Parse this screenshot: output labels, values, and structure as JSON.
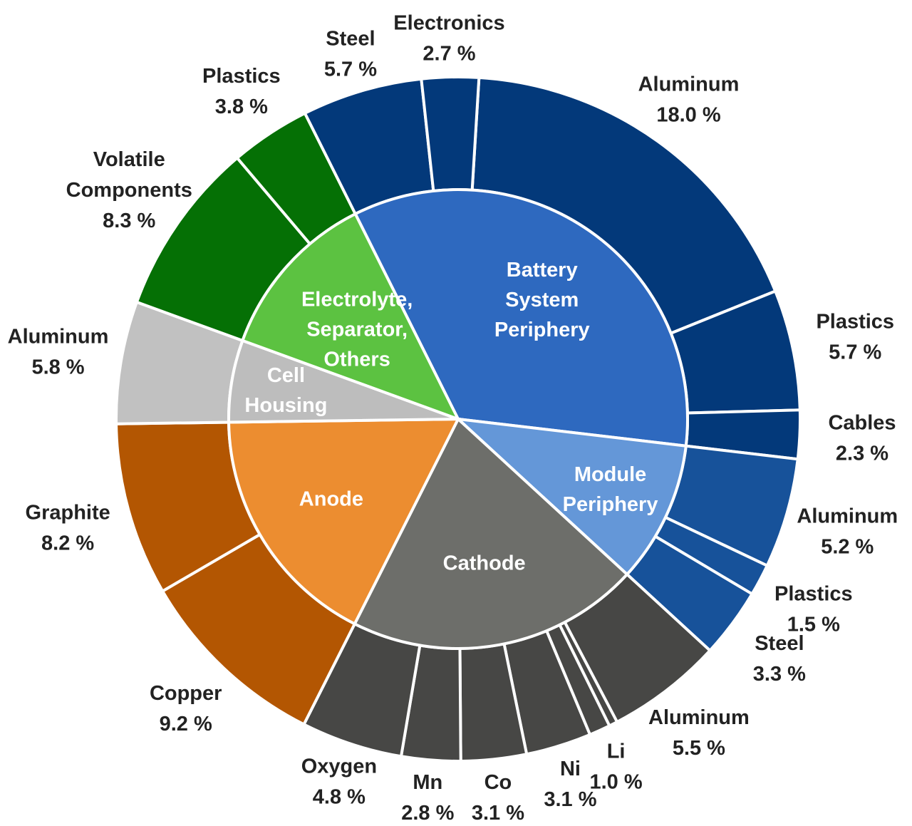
{
  "chart_data": {
    "type": "pie",
    "subtype": "sunburst",
    "unit": "%",
    "inner_ring": [
      {
        "id": "bsp",
        "label_lines": [
          "Battery",
          "System",
          "Periphery"
        ],
        "color": "#2E69BF"
      },
      {
        "id": "mp",
        "label_lines": [
          "Module",
          "Periphery"
        ],
        "color": "#6497D8"
      },
      {
        "id": "cathode",
        "label_lines": [
          "Cathode"
        ],
        "color": "#6D6E6A"
      },
      {
        "id": "anode",
        "label_lines": [
          "Anode"
        ],
        "color": "#EC8D30"
      },
      {
        "id": "housing",
        "label_lines": [
          "Cell",
          "Housing"
        ],
        "color": "#BDBDBD"
      },
      {
        "id": "electrolyte",
        "label_lines": [
          "Electrolyte,",
          "Separator,",
          "Others"
        ],
        "color": "#5CC241"
      }
    ],
    "outer_ring": [
      {
        "parent": "bsp",
        "name": "Aluminum",
        "value": 18.0,
        "label": "18.0 %",
        "color": "#03397A"
      },
      {
        "parent": "bsp",
        "name": "Plastics",
        "value": 5.7,
        "label": "5.7 %",
        "color": "#03397A"
      },
      {
        "parent": "bsp",
        "name": "Cables",
        "value": 2.3,
        "label": "2.3 %",
        "color": "#03397A"
      },
      {
        "parent": "mp",
        "name": "Aluminum",
        "value": 5.2,
        "label": "5.2 %",
        "color": "#17529A"
      },
      {
        "parent": "mp",
        "name": "Plastics",
        "value": 1.5,
        "label": "1.5 %",
        "color": "#17529A"
      },
      {
        "parent": "mp",
        "name": "Steel",
        "value": 3.3,
        "label": "3.3 %",
        "color": "#17529A"
      },
      {
        "parent": "cathode",
        "name": "Aluminum",
        "value": 5.5,
        "label": "5.5 %",
        "color": "#474745"
      },
      {
        "parent": "cathode",
        "name": "",
        "value": 0.4,
        "label": "",
        "color": "#474745"
      },
      {
        "parent": "cathode",
        "name": "Li",
        "value": 1.0,
        "label": "1.0 %",
        "color": "#474745"
      },
      {
        "parent": "cathode",
        "name": "Ni",
        "value": 3.1,
        "label": "3.1 %",
        "color": "#474745"
      },
      {
        "parent": "cathode",
        "name": "Co",
        "value": 3.1,
        "label": "3.1 %",
        "color": "#474745"
      },
      {
        "parent": "cathode",
        "name": "Mn",
        "value": 2.8,
        "label": "2.8 %",
        "color": "#474745"
      },
      {
        "parent": "cathode",
        "name": "Oxygen",
        "value": 4.8,
        "label": "4.8 %",
        "color": "#474745"
      },
      {
        "parent": "anode",
        "name": "Copper",
        "value": 9.2,
        "label": "9.2 %",
        "color": "#B35602"
      },
      {
        "parent": "anode",
        "name": "Graphite",
        "value": 8.2,
        "label": "8.2 %",
        "color": "#B35602"
      },
      {
        "parent": "housing",
        "name": "Aluminum",
        "value": 5.8,
        "label": "5.8 %",
        "color": "#C1C1C1"
      },
      {
        "parent": "electrolyte",
        "name": [
          "Volatile",
          "Components"
        ],
        "value": 8.3,
        "label": "8.3 %",
        "color": "#057005"
      },
      {
        "parent": "electrolyte",
        "name": "Plastics",
        "value": 3.8,
        "label": "3.8 %",
        "color": "#057005"
      },
      {
        "parent": "bsp",
        "name": "Steel",
        "value": 5.7,
        "label": "5.7 %",
        "color": "#03397A"
      },
      {
        "parent": "bsp",
        "name": "Electronics",
        "value": 2.7,
        "label": "2.7 %",
        "color": "#03397A"
      }
    ]
  }
}
